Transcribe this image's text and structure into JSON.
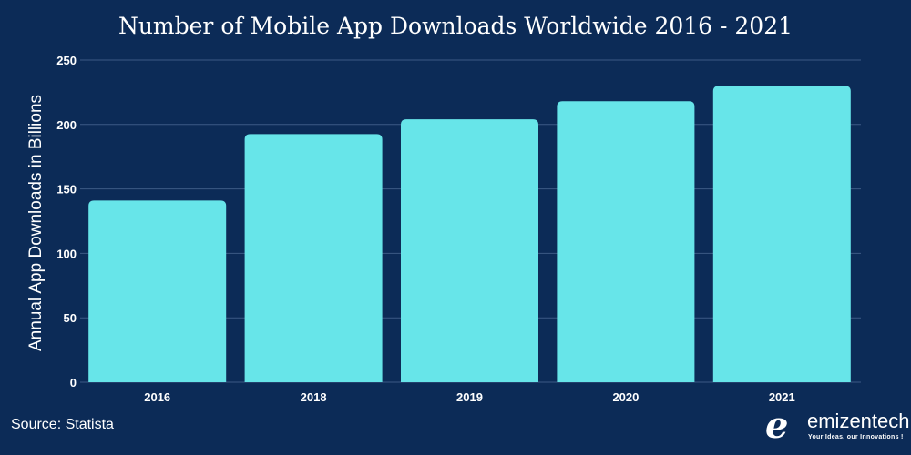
{
  "chart_data": {
    "type": "bar",
    "title": "Number of Mobile App Downloads Worldwide 2016 - 2021",
    "xlabel": "",
    "ylabel": "Annual App Downloads in Billions",
    "categories": [
      "2016",
      "2018",
      "2019",
      "2020",
      "2021"
    ],
    "values": [
      141,
      192.5,
      204,
      218,
      230
    ],
    "ylim": [
      0,
      250
    ],
    "yticks": [
      0,
      50,
      100,
      150,
      200,
      250
    ],
    "grid": true,
    "bar_color": "#67e5e9",
    "background": "#0c2b57"
  },
  "source": "Source: Statista",
  "logo": {
    "name": "emizentech",
    "tagline": "Your Ideas, our Innovations !"
  }
}
